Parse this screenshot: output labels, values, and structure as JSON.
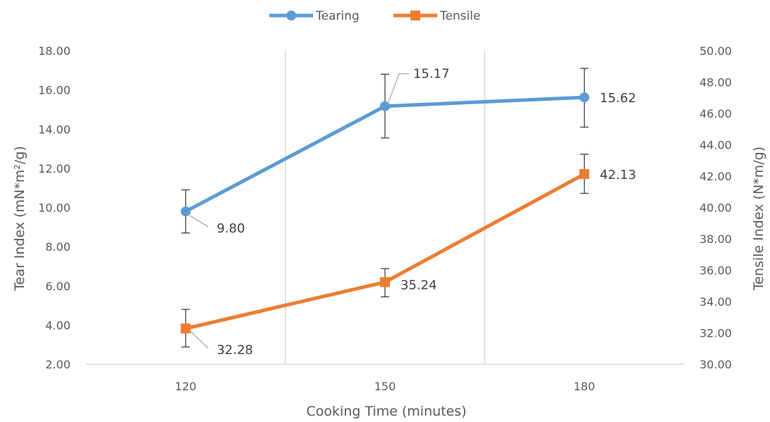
{
  "chart_data": {
    "type": "line",
    "categories": [
      "120",
      "150",
      "180"
    ],
    "xlabel": "Cooking Time (minutes)",
    "y_left": {
      "label": "Tear Index (mN*m²/g)",
      "lim": [
        2,
        18
      ],
      "ticks": [
        "2.00",
        "4.00",
        "6.00",
        "8.00",
        "10.00",
        "12.00",
        "14.00",
        "16.00",
        "18.00"
      ]
    },
    "y_right": {
      "label": "Tensile Index (N*m/g)",
      "lim": [
        30,
        50
      ],
      "ticks": [
        "30.00",
        "32.00",
        "34.00",
        "36.00",
        "38.00",
        "40.00",
        "42.00",
        "44.00",
        "46.00",
        "48.00",
        "50.00"
      ]
    },
    "series": [
      {
        "name": "Tearing",
        "axis": "left",
        "color": "#5B9BD5",
        "marker": "circle",
        "values": [
          9.8,
          15.17,
          15.62
        ],
        "labels": [
          "9.80",
          "15.17",
          "15.62"
        ],
        "error_low": [
          8.7,
          13.55,
          14.1
        ],
        "error_high": [
          10.9,
          16.8,
          17.1
        ]
      },
      {
        "name": "Tensile",
        "axis": "right",
        "color": "#ED7D31",
        "marker": "square",
        "values": [
          32.28,
          35.24,
          42.13
        ],
        "labels": [
          "32.28",
          "35.24",
          "42.13"
        ],
        "error_low": [
          31.1,
          34.3,
          40.9
        ],
        "error_high": [
          33.5,
          36.1,
          43.4
        ]
      }
    ],
    "legend": "top-center",
    "grid": "vertical"
  }
}
